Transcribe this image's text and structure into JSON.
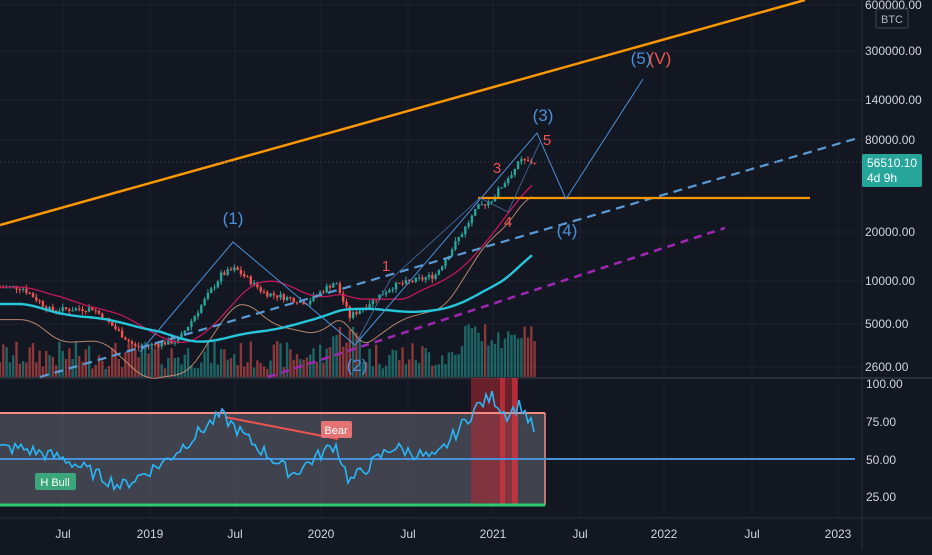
{
  "chart_data": [
    {
      "type": "candlestick",
      "symbol": "BTC",
      "scale": "log",
      "last_price": "56510.10",
      "countdown": "4d 9h",
      "y_ticks": [
        "600000.00",
        "300000.00",
        "140000.00",
        "80000.00",
        "20000.00",
        "10000.00",
        "5000.00",
        "2600.00"
      ],
      "x_ticks": [
        "Jul",
        "2019",
        "Jul",
        "2020",
        "Jul",
        "2021",
        "Jul",
        "2022",
        "Jul",
        "2023"
      ],
      "wave_labels": {
        "w1": "(1)",
        "w2": "(2)",
        "w3": "(3)",
        "w4": "(4)",
        "w5": "(5)",
        "wV": "(V)",
        "s1": "1",
        "s3": "3",
        "s4": "4",
        "s5": "5"
      },
      "moving_averages": [
        "crimson",
        "teal",
        "tan"
      ],
      "series_close_approx": [
        {
          "date": "2018-04",
          "close": 9000
        },
        {
          "date": "2018-06",
          "close": 6400
        },
        {
          "date": "2018-09",
          "close": 6600
        },
        {
          "date": "2018-12",
          "close": 3700
        },
        {
          "date": "2019-03",
          "close": 4100
        },
        {
          "date": "2019-06",
          "close": 10800
        },
        {
          "date": "2019-07",
          "close": 11800
        },
        {
          "date": "2019-09",
          "close": 8300
        },
        {
          "date": "2019-12",
          "close": 7200
        },
        {
          "date": "2020-02",
          "close": 9800
        },
        {
          "date": "2020-03",
          "close": 5800
        },
        {
          "date": "2020-06",
          "close": 9100
        },
        {
          "date": "2020-09",
          "close": 10700
        },
        {
          "date": "2020-12",
          "close": 29000
        },
        {
          "date": "2021-01",
          "close": 33000
        },
        {
          "date": "2021-03",
          "close": 58000
        },
        {
          "date": "2021-04",
          "close": 56510
        }
      ],
      "projection": [
        {
          "date": "2021-05",
          "value": 30000
        },
        {
          "date": "2021-12",
          "value": 210000
        }
      ]
    },
    {
      "type": "line",
      "indicator": "RSI",
      "y_ticks": [
        "100.00",
        "75.00",
        "50.00",
        "25.00"
      ],
      "ylim": [
        15,
        100
      ],
      "bands": {
        "upper": 80,
        "mid": 50,
        "lower": 20
      },
      "labels": {
        "bear": "Bear",
        "hbull": "H Bull"
      },
      "series_approx": [
        {
          "date": "2018-04",
          "value": 57
        },
        {
          "date": "2018-07",
          "value": 50
        },
        {
          "date": "2018-11",
          "value": 32
        },
        {
          "date": "2019-02",
          "value": 48
        },
        {
          "date": "2019-05",
          "value": 72
        },
        {
          "date": "2019-06",
          "value": 79
        },
        {
          "date": "2019-08",
          "value": 62
        },
        {
          "date": "2019-11",
          "value": 40
        },
        {
          "date": "2020-02",
          "value": 60
        },
        {
          "date": "2020-03",
          "value": 35
        },
        {
          "date": "2020-06",
          "value": 58
        },
        {
          "date": "2020-09",
          "value": 50
        },
        {
          "date": "2020-12",
          "value": 85
        },
        {
          "date": "2021-01",
          "value": 91
        },
        {
          "date": "2021-02",
          "value": 79
        },
        {
          "date": "2021-03",
          "value": 86
        },
        {
          "date": "2021-04",
          "value": 68
        }
      ]
    }
  ]
}
